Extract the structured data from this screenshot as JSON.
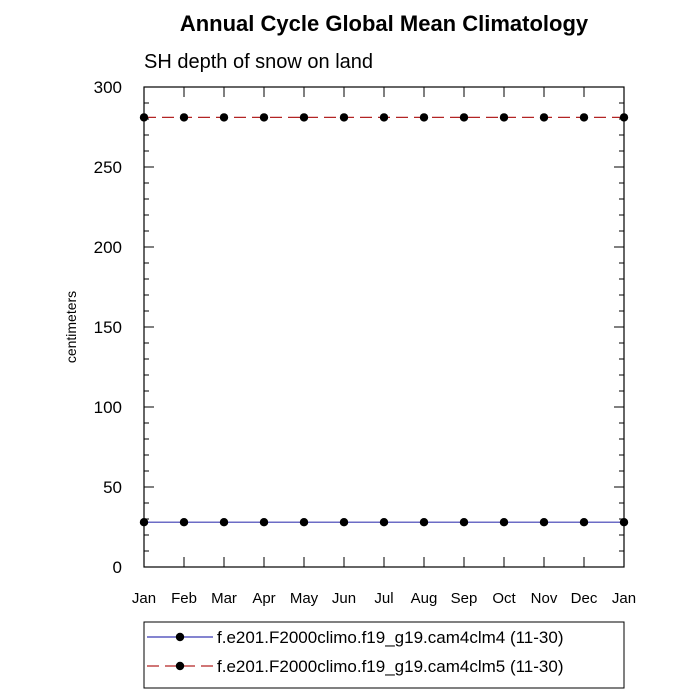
{
  "chart_data": {
    "type": "line",
    "title": "Annual Cycle Global Mean Climatology",
    "subtitle": "SH depth of snow on land",
    "xlabel": "",
    "ylabel": "centimeters",
    "categories": [
      "Jan",
      "Feb",
      "Mar",
      "Apr",
      "May",
      "Jun",
      "Jul",
      "Aug",
      "Sep",
      "Oct",
      "Nov",
      "Dec",
      "Jan"
    ],
    "ylim": [
      0,
      300
    ],
    "yticks": [
      0,
      50,
      100,
      150,
      200,
      250,
      300
    ],
    "yticks_minor_step": 10,
    "grid": false,
    "legend_position": "bottom",
    "series": [
      {
        "name": "f.e201.F2000climo.f19_g19.cam4clm4 (11-30)",
        "color": "#3b3bb3",
        "line_style": "solid",
        "marker": "filled-circle",
        "values": [
          28,
          28,
          28,
          28,
          28,
          28,
          28,
          28,
          28,
          28,
          28,
          28,
          28
        ]
      },
      {
        "name": "f.e201.F2000climo.f19_g19.cam4clm5 (11-30)",
        "color": "#b32424",
        "line_style": "dashed",
        "marker": "filled-circle",
        "values": [
          281,
          281,
          281,
          281,
          281,
          281,
          281,
          281,
          281,
          281,
          281,
          281,
          281
        ]
      }
    ]
  }
}
